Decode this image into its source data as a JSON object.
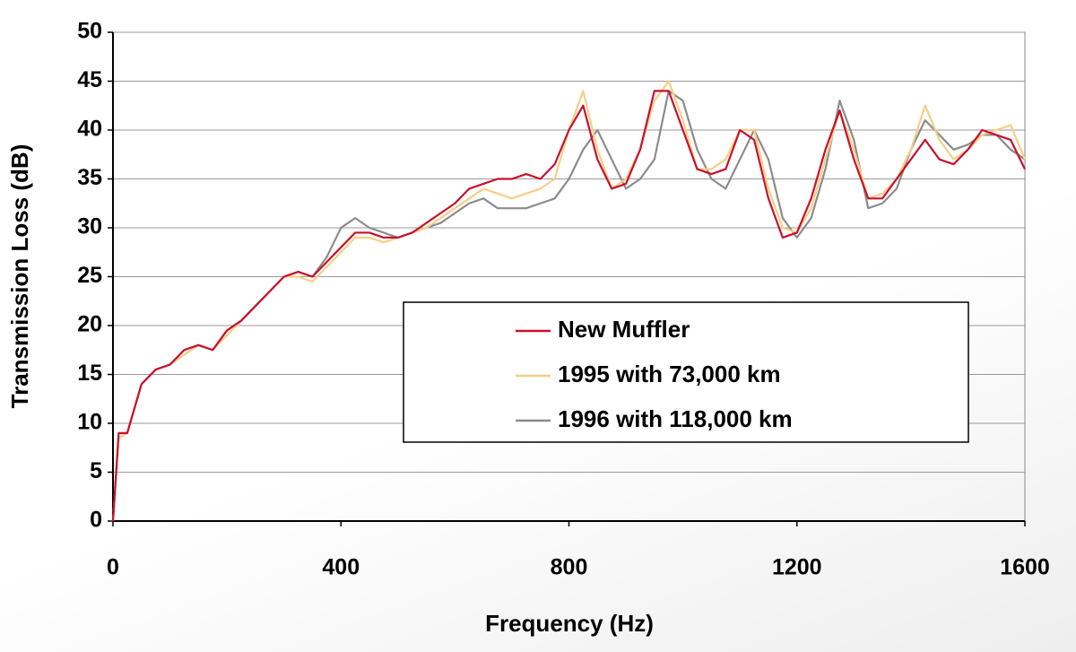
{
  "chart_data": {
    "type": "line",
    "x_label": "Frequency (Hz)",
    "y_label": "Transmission Loss (dB)",
    "x": [
      0,
      10,
      25,
      50,
      75,
      100,
      125,
      150,
      175,
      200,
      225,
      250,
      275,
      300,
      325,
      350,
      375,
      400,
      425,
      450,
      475,
      500,
      525,
      550,
      575,
      600,
      625,
      650,
      675,
      700,
      725,
      750,
      775,
      800,
      825,
      850,
      875,
      900,
      925,
      950,
      975,
      1000,
      1025,
      1050,
      1075,
      1100,
      1125,
      1150,
      1175,
      1200,
      1225,
      1250,
      1275,
      1300,
      1325,
      1350,
      1375,
      1400,
      1425,
      1450,
      1475,
      1500,
      1525,
      1550,
      1575,
      1600
    ],
    "series": [
      {
        "name": "New Muffler",
        "color": "#c8102e",
        "values": [
          0,
          9,
          9,
          14,
          15.5,
          16,
          17.5,
          18,
          17.5,
          19.5,
          20.5,
          22,
          23.5,
          25,
          25.5,
          25,
          26.5,
          28,
          29.5,
          29.5,
          29,
          29,
          29.5,
          30.5,
          31.5,
          32.5,
          34,
          34.5,
          35,
          35,
          35.5,
          35,
          36.5,
          40,
          42.5,
          37,
          34,
          34.5,
          38,
          44,
          44,
          40,
          36,
          35.5,
          36,
          40,
          39,
          33,
          29,
          29.5,
          33,
          38,
          42,
          37,
          33,
          33,
          35,
          37,
          39,
          37,
          36.5,
          38,
          40,
          39.5,
          39,
          36
        ]
      },
      {
        "name": "1995 with 73,000 km",
        "color": "#f5cf86",
        "values": [
          0,
          8.5,
          9,
          14,
          15.5,
          16,
          17,
          18,
          17.5,
          19,
          20.5,
          22,
          23.5,
          25,
          25,
          24.5,
          26,
          27.5,
          29,
          29,
          28.5,
          29,
          29.5,
          30,
          31,
          32,
          33,
          34,
          33.5,
          33,
          33.5,
          34,
          35,
          40,
          44,
          38,
          34,
          35,
          38,
          43,
          45,
          41,
          36,
          36,
          37,
          40,
          40,
          34,
          30,
          29.5,
          32,
          37,
          42,
          38,
          33,
          33.5,
          35,
          38,
          42.5,
          39,
          37,
          38,
          39.5,
          40,
          40.5,
          37
        ]
      },
      {
        "name": "1996 with 118,000 km",
        "color": "#8c8c8c",
        "values": [
          0,
          8.5,
          9,
          14,
          15.5,
          16,
          17.5,
          18,
          17.5,
          19.5,
          20.5,
          22,
          23.5,
          25,
          25.5,
          25,
          27,
          30,
          31,
          30,
          29.5,
          29,
          29.5,
          30,
          30.5,
          31.5,
          32.5,
          33,
          32,
          32,
          32,
          32.5,
          33,
          35,
          38,
          40,
          37,
          34,
          35,
          37,
          44,
          43,
          38,
          35,
          34,
          37,
          40,
          37,
          31,
          29,
          31,
          36,
          43,
          39,
          32,
          32.5,
          34,
          38,
          41,
          39.5,
          38,
          38.5,
          39.5,
          39.5,
          38,
          37
        ]
      }
    ],
    "xlim": [
      0,
      1600
    ],
    "xticks": [
      0,
      400,
      800,
      1200,
      1600
    ],
    "ylim": [
      0,
      50
    ],
    "yticks": [
      0,
      5,
      10,
      15,
      20,
      25,
      30,
      35,
      40,
      45,
      50
    ],
    "grid": true
  }
}
